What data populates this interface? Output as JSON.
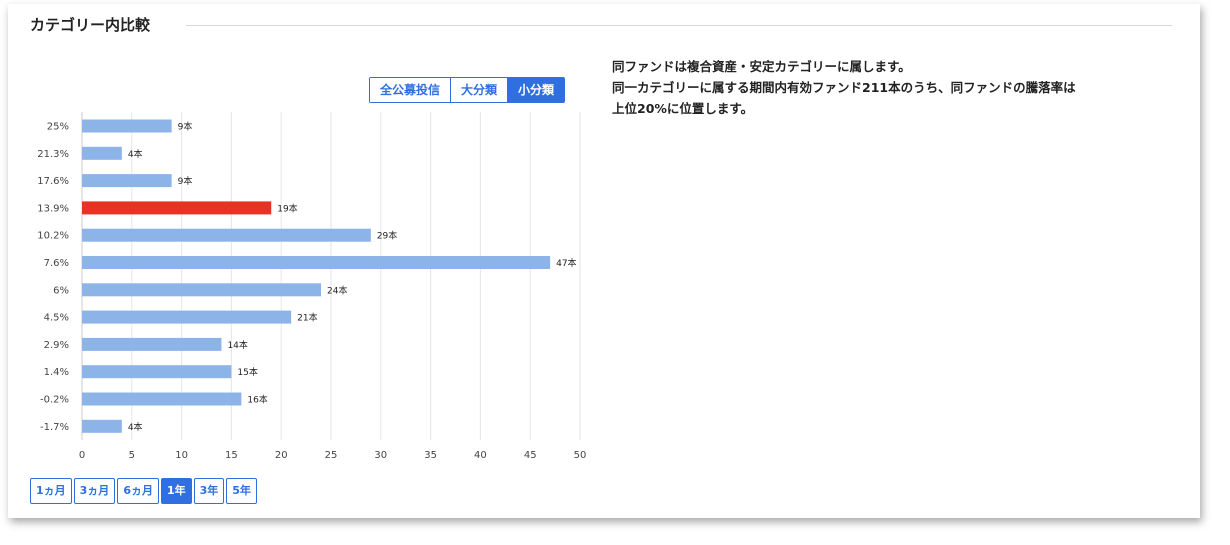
{
  "section": {
    "title": "カテゴリー内比較"
  },
  "category_toggle": {
    "options": [
      "全公募投信",
      "大分類",
      "小分類"
    ],
    "selected": "小分類"
  },
  "period_toggle": {
    "options": [
      "1ヵ月",
      "3ヵ月",
      "6ヵ月",
      "1年",
      "3年",
      "5年"
    ],
    "selected": "1年"
  },
  "description": {
    "line1": "同ファンドは複合資産・安定カテゴリーに属します。",
    "line2": "同一カテゴリーに属する期間内有効ファンド211本のうち、同ファンドの騰落率は",
    "line3": "上位20%に位置します。"
  },
  "colors": {
    "accent": "#2f6fe0",
    "bar": "#8cb4e8",
    "highlight": "#e83223"
  },
  "chart_data": {
    "type": "bar",
    "orientation": "horizontal",
    "categories": [
      "25%",
      "21.3%",
      "17.6%",
      "13.9%",
      "10.2%",
      "7.6%",
      "6%",
      "4.5%",
      "2.9%",
      "1.4%",
      "-0.2%",
      "-1.7%"
    ],
    "values": [
      9,
      4,
      9,
      19,
      29,
      47,
      24,
      21,
      14,
      15,
      16,
      4
    ],
    "data_labels": [
      "9本",
      "4本",
      "9本",
      "19本",
      "29本",
      "47本",
      "24本",
      "21本",
      "14本",
      "15本",
      "16本",
      "4本"
    ],
    "highlight_category": "13.9%",
    "xlim": [
      0,
      50
    ],
    "xticks": [
      0,
      5,
      10,
      15,
      20,
      25,
      30,
      35,
      40,
      45,
      50
    ],
    "grid": true,
    "title": "",
    "xlabel": "",
    "ylabel": ""
  }
}
